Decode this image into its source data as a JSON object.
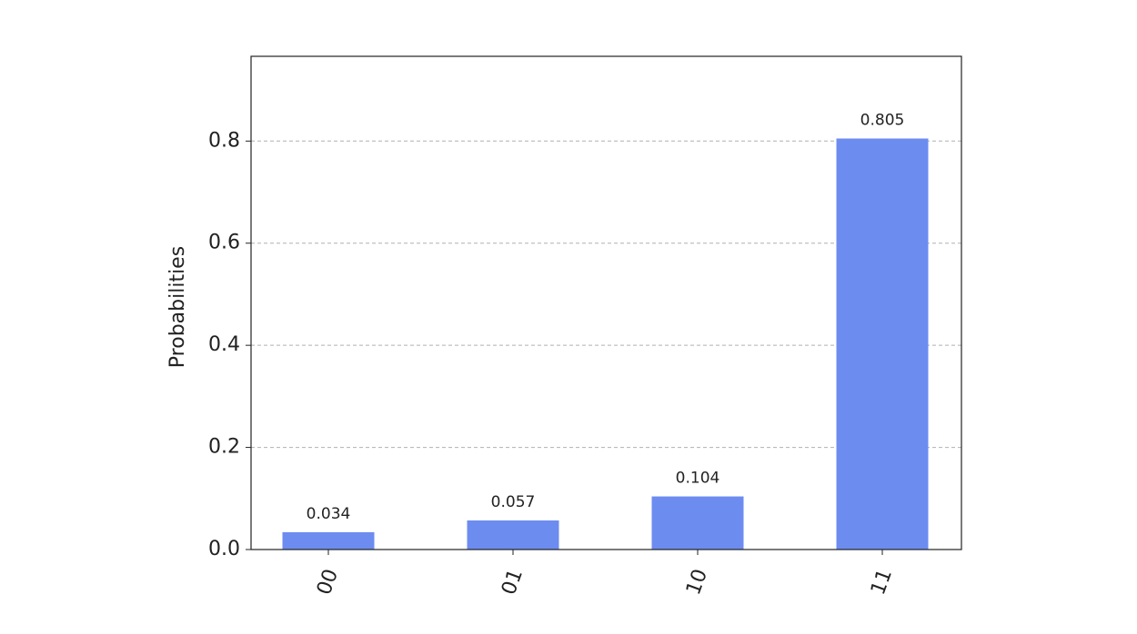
{
  "chart_data": {
    "type": "bar",
    "y_label": "Probabilities",
    "categories": [
      "00",
      "01",
      "10",
      "11"
    ],
    "values": [
      0.034,
      0.057,
      0.104,
      0.805
    ],
    "color": "#6d8cf0",
    "ylim": [
      0,
      0.966
    ],
    "yticks": [
      {
        "value": 0,
        "label": "0.0"
      },
      0.2,
      0.4,
      0.6,
      0.8
    ],
    "grid": true
  }
}
